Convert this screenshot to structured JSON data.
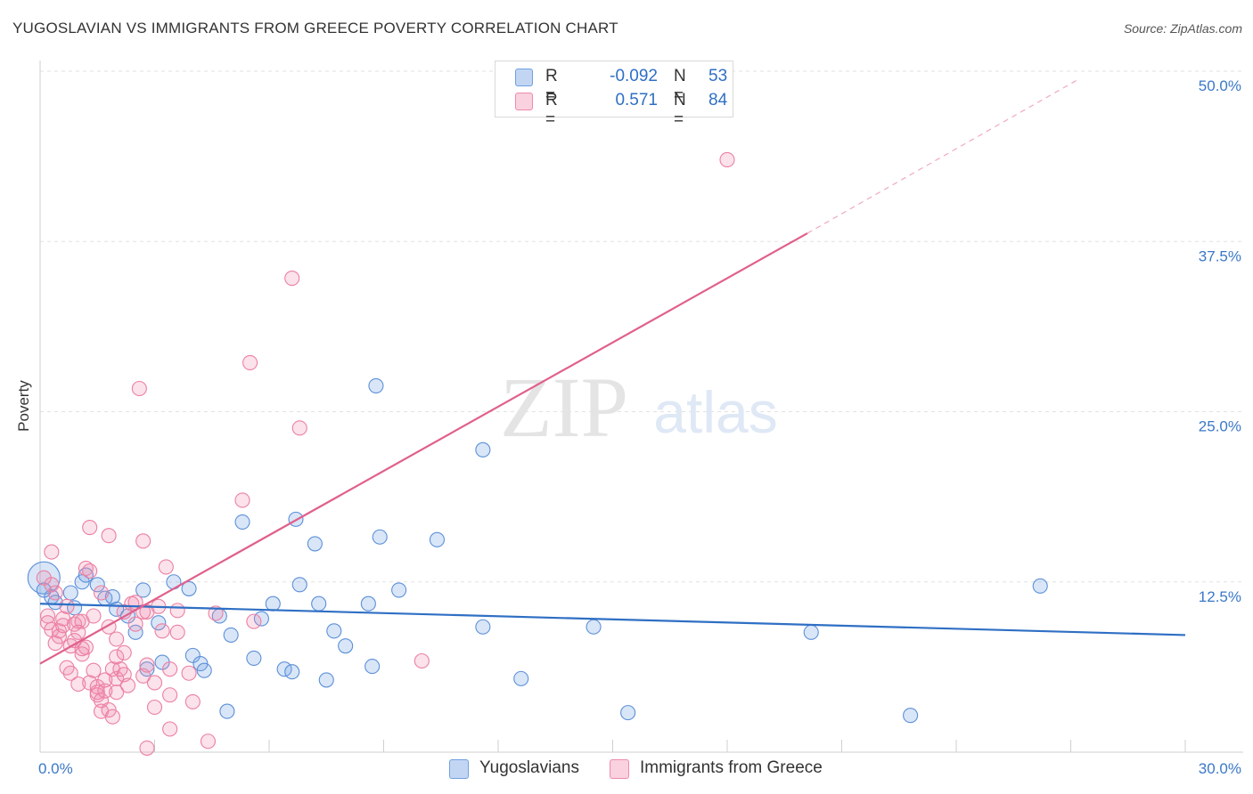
{
  "header": {
    "title": "YUGOSLAVIAN VS IMMIGRANTS FROM GREECE POVERTY CORRELATION CHART",
    "source": "Source: ZipAtlas.com"
  },
  "watermark": {
    "zip": "ZIP",
    "atlas": "atlas"
  },
  "legend": {
    "r_label": "R =",
    "n_label": "N =",
    "rows": [
      {
        "r": "-0.092",
        "n": "53",
        "color": "#6fa0e0"
      },
      {
        "r": "0.571",
        "n": "84",
        "color": "#f08aab"
      }
    ]
  },
  "bottom_legend": [
    "Yugoslavians",
    "Immigrants from Greece"
  ],
  "chart_data": {
    "type": "scatter",
    "title": "YUGOSLAVIAN VS IMMIGRANTS FROM GREECE POVERTY CORRELATION CHART",
    "xlabel": "",
    "ylabel": "Poverty",
    "xlim": [
      0,
      30
    ],
    "ylim": [
      0,
      50
    ],
    "x_tick_labels": [
      "0.0%",
      "30.0%"
    ],
    "y_tick_labels": [
      {
        "value": 12.5,
        "label": "12.5%"
      },
      {
        "value": 25.0,
        "label": "25.0%"
      },
      {
        "value": 37.5,
        "label": "37.5%"
      },
      {
        "value": 50.0,
        "label": "50.0%"
      }
    ],
    "series": [
      {
        "name": "Yugoslavians",
        "stroke": "#5b8fd8",
        "fill": "rgba(120,165,230,0.28)",
        "trend": {
          "x": [
            0,
            30
          ],
          "y": [
            10.9,
            8.6
          ],
          "color": "#2f6fc4"
        },
        "points": [
          [
            0.1,
            12.8
          ],
          [
            0.3,
            11.4
          ],
          [
            0.4,
            11.0
          ],
          [
            0.8,
            11.7
          ],
          [
            0.9,
            10.6
          ],
          [
            1.1,
            12.5
          ],
          [
            1.2,
            13.0
          ],
          [
            1.5,
            12.3
          ],
          [
            1.7,
            11.3
          ],
          [
            1.9,
            11.4
          ],
          [
            2.0,
            10.5
          ],
          [
            2.3,
            10.0
          ],
          [
            2.5,
            8.8
          ],
          [
            2.7,
            11.9
          ],
          [
            2.8,
            6.1
          ],
          [
            3.1,
            9.5
          ],
          [
            3.2,
            6.6
          ],
          [
            3.5,
            12.5
          ],
          [
            3.9,
            12.0
          ],
          [
            4.0,
            7.1
          ],
          [
            4.2,
            6.5
          ],
          [
            4.3,
            6.0
          ],
          [
            4.7,
            10.0
          ],
          [
            4.9,
            3.0
          ],
          [
            5.0,
            8.6
          ],
          [
            5.3,
            16.9
          ],
          [
            5.6,
            6.9
          ],
          [
            5.8,
            9.8
          ],
          [
            6.1,
            10.9
          ],
          [
            6.4,
            6.1
          ],
          [
            6.6,
            5.9
          ],
          [
            6.7,
            17.1
          ],
          [
            6.8,
            12.3
          ],
          [
            7.2,
            15.3
          ],
          [
            7.3,
            10.9
          ],
          [
            7.5,
            5.3
          ],
          [
            7.7,
            8.9
          ],
          [
            8.0,
            7.8
          ],
          [
            8.6,
            10.9
          ],
          [
            8.7,
            6.3
          ],
          [
            8.8,
            26.9
          ],
          [
            8.9,
            15.8
          ],
          [
            9.4,
            11.9
          ],
          [
            10.4,
            15.6
          ],
          [
            11.6,
            22.2
          ],
          [
            11.6,
            9.2
          ],
          [
            12.6,
            5.4
          ],
          [
            14.5,
            9.2
          ],
          [
            15.4,
            2.9
          ],
          [
            20.2,
            8.8
          ],
          [
            22.8,
            2.7
          ],
          [
            26.2,
            12.2
          ],
          [
            0.1,
            11.9
          ]
        ]
      },
      {
        "name": "Immigrants from Greece",
        "stroke": "#ec7fa2",
        "fill": "rgba(240,140,175,0.25)",
        "trend": {
          "x": [
            0,
            20.1
          ],
          "y": [
            6.5,
            38.1
          ],
          "color": "#e0608c",
          "dash_x": [
            20.1,
            27.2
          ],
          "dash_y": [
            38.1,
            49.4
          ]
        },
        "points": [
          [
            0.1,
            12.8
          ],
          [
            0.2,
            10.0
          ],
          [
            0.2,
            9.5
          ],
          [
            0.3,
            14.7
          ],
          [
            0.3,
            9.0
          ],
          [
            0.3,
            12.3
          ],
          [
            0.4,
            8.0
          ],
          [
            0.4,
            11.7
          ],
          [
            0.5,
            8.5
          ],
          [
            0.5,
            8.9
          ],
          [
            0.6,
            9.3
          ],
          [
            0.6,
            9.8
          ],
          [
            0.7,
            10.7
          ],
          [
            0.7,
            6.2
          ],
          [
            0.8,
            5.8
          ],
          [
            0.8,
            7.8
          ],
          [
            0.9,
            9.4
          ],
          [
            0.9,
            8.2
          ],
          [
            1.0,
            9.6
          ],
          [
            1.0,
            5.0
          ],
          [
            1.1,
            7.2
          ],
          [
            1.1,
            7.6
          ],
          [
            1.1,
            9.6
          ],
          [
            1.2,
            13.5
          ],
          [
            1.2,
            7.7
          ],
          [
            1.3,
            16.5
          ],
          [
            1.3,
            5.1
          ],
          [
            1.3,
            13.3
          ],
          [
            1.4,
            6.0
          ],
          [
            1.4,
            10.0
          ],
          [
            1.5,
            4.4
          ],
          [
            1.5,
            4.8
          ],
          [
            1.5,
            4.2
          ],
          [
            1.6,
            3.8
          ],
          [
            1.6,
            3.0
          ],
          [
            1.6,
            11.7
          ],
          [
            1.7,
            4.5
          ],
          [
            1.7,
            5.3
          ],
          [
            1.8,
            9.2
          ],
          [
            1.8,
            15.9
          ],
          [
            1.8,
            3.1
          ],
          [
            1.9,
            6.1
          ],
          [
            1.9,
            2.6
          ],
          [
            2.0,
            8.3
          ],
          [
            2.0,
            4.4
          ],
          [
            2.0,
            5.4
          ],
          [
            2.0,
            7.0
          ],
          [
            2.1,
            6.1
          ],
          [
            2.2,
            5.7
          ],
          [
            2.2,
            7.3
          ],
          [
            2.2,
            10.3
          ],
          [
            2.3,
            4.9
          ],
          [
            2.4,
            10.9
          ],
          [
            2.5,
            11.0
          ],
          [
            2.5,
            9.4
          ],
          [
            2.6,
            26.7
          ],
          [
            2.7,
            5.6
          ],
          [
            2.7,
            10.3
          ],
          [
            2.7,
            15.5
          ],
          [
            2.8,
            6.4
          ],
          [
            2.8,
            0.3
          ],
          [
            2.8,
            10.3
          ],
          [
            3.0,
            5.1
          ],
          [
            3.0,
            3.3
          ],
          [
            3.1,
            10.7
          ],
          [
            3.2,
            8.9
          ],
          [
            3.3,
            13.6
          ],
          [
            3.4,
            6.1
          ],
          [
            3.4,
            4.2
          ],
          [
            3.4,
            1.7
          ],
          [
            3.6,
            8.8
          ],
          [
            3.6,
            10.4
          ],
          [
            3.9,
            5.8
          ],
          [
            4.0,
            3.7
          ],
          [
            4.4,
            0.8
          ],
          [
            4.6,
            10.2
          ],
          [
            5.3,
            18.5
          ],
          [
            5.5,
            28.6
          ],
          [
            5.6,
            9.6
          ],
          [
            6.6,
            34.8
          ],
          [
            6.8,
            23.8
          ],
          [
            10.0,
            6.7
          ],
          [
            18.0,
            43.5
          ],
          [
            1.0,
            8.8
          ]
        ]
      }
    ]
  }
}
